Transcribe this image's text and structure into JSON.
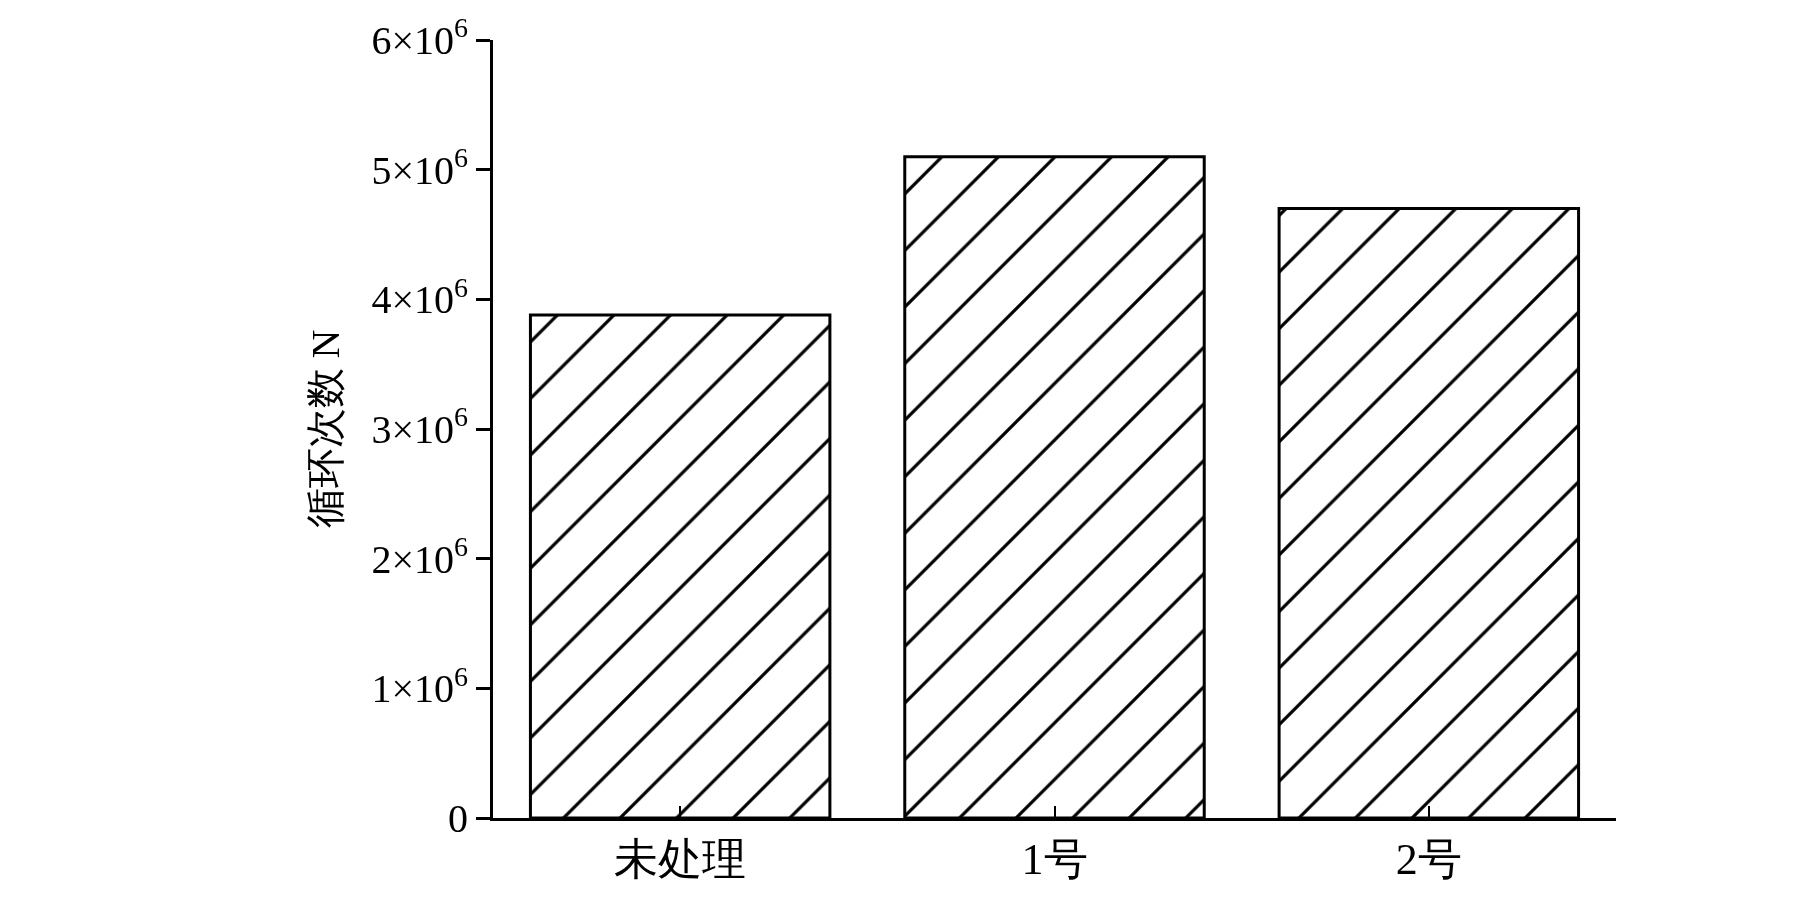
{
  "chart_data": {
    "type": "bar",
    "ylabel": "循环次数 N",
    "categories": [
      "未处理",
      "1号",
      "2号"
    ],
    "series": [
      {
        "color": "#000000",
        "values": [
          3880000,
          5100000,
          4700000
        ]
      }
    ],
    "ylim": [
      0,
      6000000
    ],
    "yticks": [
      0,
      {
        "value": 1000000,
        "label": "1×10$^{6}$"
      },
      {
        "value": 2000000,
        "label": "2×10$^{6}$"
      },
      {
        "value": 3000000,
        "label": "3×10$^{6}$"
      },
      {
        "value": 4000000,
        "label": "4×10$^{6}$"
      },
      {
        "value": 5000000,
        "label": "5×10$^{6}$"
      },
      {
        "value": 6000000,
        "label": "6×10$^{6}$"
      }
    ],
    "legend": false
  }
}
